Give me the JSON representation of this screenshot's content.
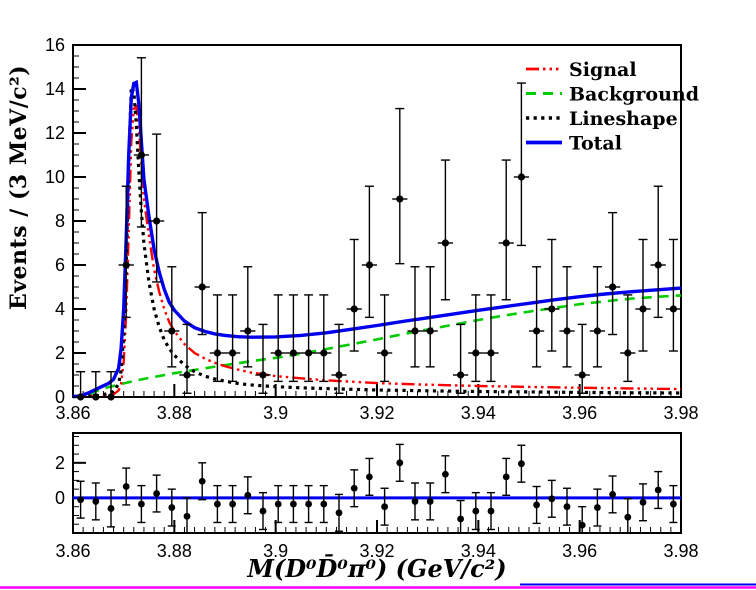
{
  "chart_data": [
    {
      "id": "main-panel",
      "type": "scatter",
      "ylabel": "Events / (3 MeV/c²)",
      "xlim": [
        3.86,
        3.98
      ],
      "ylim": [
        0,
        16
      ],
      "grid": false,
      "xticks": {
        "values": [
          3.86,
          3.88,
          3.9,
          3.92,
          3.94,
          3.96,
          3.98
        ],
        "labels": [
          "3.86",
          "3.88",
          "3.9",
          "3.92",
          "3.94",
          "3.96",
          "3.98"
        ],
        "minor_step": 0.002
      },
      "yticks": {
        "values": [
          0,
          2,
          4,
          6,
          8,
          10,
          12,
          14,
          16
        ],
        "labels": [
          "0",
          "2",
          "4",
          "6",
          "8",
          "10",
          "12",
          "14",
          "16"
        ],
        "minor_step": 0.5
      },
      "bin_width_gev": 0.003,
      "data_points": {
        "xerr": 0.0015,
        "x": [
          3.8615,
          3.8645,
          3.8675,
          3.8705,
          3.8735,
          3.8765,
          3.8795,
          3.8825,
          3.8855,
          3.8885,
          3.8915,
          3.8945,
          3.8975,
          3.9005,
          3.9035,
          3.9065,
          3.9095,
          3.9125,
          3.9155,
          3.9185,
          3.9215,
          3.9245,
          3.9275,
          3.9305,
          3.9335,
          3.9365,
          3.9395,
          3.9425,
          3.9455,
          3.9485,
          3.9515,
          3.9545,
          3.9575,
          3.9605,
          3.9635,
          3.9665,
          3.9695,
          3.9725,
          3.9755,
          3.9785
        ],
        "y": [
          0,
          0,
          0,
          6,
          11,
          8,
          3,
          1,
          5,
          2,
          2,
          3,
          1,
          2,
          2,
          2,
          2,
          1,
          4,
          6,
          2,
          9,
          3,
          3,
          7,
          1,
          2,
          2,
          7,
          10,
          3,
          4,
          3,
          1,
          3,
          5,
          2,
          4,
          6,
          4
        ],
        "err_up": [
          1.15,
          1.15,
          1.15,
          3.58,
          4.42,
          3.95,
          2.92,
          2.3,
          3.38,
          2.64,
          2.64,
          2.92,
          2.3,
          2.64,
          2.64,
          2.64,
          2.64,
          2.3,
          3.16,
          3.58,
          2.64,
          4.11,
          2.92,
          2.92,
          3.77,
          2.3,
          2.64,
          2.64,
          3.77,
          4.27,
          2.92,
          3.16,
          2.92,
          2.3,
          2.92,
          3.38,
          2.64,
          3.16,
          3.58,
          3.16
        ],
        "err_low": [
          0,
          0,
          0,
          2.38,
          3.27,
          2.77,
          1.63,
          0.83,
          2.16,
          1.29,
          1.29,
          1.63,
          0.83,
          1.29,
          1.29,
          1.29,
          1.29,
          0.83,
          1.91,
          2.38,
          1.29,
          2.94,
          1.63,
          1.63,
          2.58,
          0.83,
          1.29,
          1.29,
          2.58,
          3.11,
          1.63,
          1.91,
          1.63,
          0.83,
          1.63,
          2.16,
          1.29,
          1.91,
          2.38,
          1.91
        ]
      },
      "curves": [
        {
          "name": "Signal",
          "color": "#ff0000",
          "dash": "13 4 2.5 4 2.5 4 2.5 4",
          "width": 2.4,
          "points": [
            [
              3.86,
              0.02
            ],
            [
              3.864,
              0.04
            ],
            [
              3.866,
              0.07
            ],
            [
              3.868,
              0.12
            ],
            [
              3.869,
              0.3
            ],
            [
              3.8695,
              0.6
            ],
            [
              3.87,
              1.6
            ],
            [
              3.8705,
              3.8
            ],
            [
              3.871,
              7.5
            ],
            [
              3.8715,
              11.6
            ],
            [
              3.872,
              13.1
            ],
            [
              3.8725,
              13.2
            ],
            [
              3.873,
              12.2
            ],
            [
              3.8735,
              10.6
            ],
            [
              3.874,
              9.0
            ],
            [
              3.875,
              7.3
            ],
            [
              3.876,
              5.8
            ],
            [
              3.877,
              4.8
            ],
            [
              3.878,
              4.0
            ],
            [
              3.879,
              3.4
            ],
            [
              3.88,
              3.0
            ],
            [
              3.882,
              2.4
            ],
            [
              3.884,
              2.0
            ],
            [
              3.886,
              1.75
            ],
            [
              3.888,
              1.55
            ],
            [
              3.89,
              1.4
            ],
            [
              3.8925,
              1.25
            ],
            [
              3.895,
              1.12
            ],
            [
              3.9,
              0.95
            ],
            [
              3.905,
              0.85
            ],
            [
              3.91,
              0.76
            ],
            [
              3.92,
              0.63
            ],
            [
              3.93,
              0.56
            ],
            [
              3.94,
              0.5
            ],
            [
              3.95,
              0.46
            ],
            [
              3.96,
              0.42
            ],
            [
              3.97,
              0.39
            ],
            [
              3.98,
              0.36
            ]
          ]
        },
        {
          "name": "Background",
          "color": "#00cc00",
          "dash": "10 7",
          "width": 2.6,
          "points": [
            [
              3.86,
              0.0
            ],
            [
              3.8615,
              0.02
            ],
            [
              3.863,
              0.12
            ],
            [
              3.865,
              0.3
            ],
            [
              3.867,
              0.45
            ],
            [
              3.87,
              0.62
            ],
            [
              3.8725,
              0.75
            ],
            [
              3.875,
              0.87
            ],
            [
              3.88,
              1.08
            ],
            [
              3.885,
              1.27
            ],
            [
              3.89,
              1.45
            ],
            [
              3.895,
              1.62
            ],
            [
              3.9,
              1.78
            ],
            [
              3.905,
              1.97
            ],
            [
              3.91,
              2.18
            ],
            [
              3.915,
              2.4
            ],
            [
              3.92,
              2.62
            ],
            [
              3.925,
              2.85
            ],
            [
              3.93,
              3.07
            ],
            [
              3.935,
              3.28
            ],
            [
              3.94,
              3.5
            ],
            [
              3.945,
              3.7
            ],
            [
              3.95,
              3.88
            ],
            [
              3.955,
              4.05
            ],
            [
              3.96,
              4.22
            ],
            [
              3.965,
              4.35
            ],
            [
              3.97,
              4.47
            ],
            [
              3.975,
              4.55
            ],
            [
              3.98,
              4.62
            ]
          ]
        },
        {
          "name": "Lineshape",
          "color": "#000000",
          "dash": "3.2 4.4",
          "width": 3.2,
          "points": [
            [
              3.86,
              0.02
            ],
            [
              3.864,
              0.05
            ],
            [
              3.866,
              0.1
            ],
            [
              3.868,
              0.25
            ],
            [
              3.869,
              0.6
            ],
            [
              3.8695,
              1.2
            ],
            [
              3.87,
              2.8
            ],
            [
              3.8705,
              6.0
            ],
            [
              3.871,
              10.5
            ],
            [
              3.8715,
              14.1
            ],
            [
              3.872,
              13.9
            ],
            [
              3.8725,
              12.4
            ],
            [
              3.873,
              10.2
            ],
            [
              3.8735,
              8.4
            ],
            [
              3.874,
              7.0
            ],
            [
              3.875,
              5.2
            ],
            [
              3.876,
              4.0
            ],
            [
              3.877,
              3.2
            ],
            [
              3.878,
              2.6
            ],
            [
              3.879,
              2.2
            ],
            [
              3.88,
              1.9
            ],
            [
              3.882,
              1.45
            ],
            [
              3.884,
              1.15
            ],
            [
              3.886,
              0.95
            ],
            [
              3.888,
              0.82
            ],
            [
              3.89,
              0.72
            ],
            [
              3.8925,
              0.62
            ],
            [
              3.895,
              0.55
            ],
            [
              3.9,
              0.47
            ],
            [
              3.905,
              0.42
            ],
            [
              3.91,
              0.38
            ],
            [
              3.92,
              0.32
            ],
            [
              3.93,
              0.28
            ],
            [
              3.94,
              0.25
            ],
            [
              3.95,
              0.23
            ],
            [
              3.96,
              0.21
            ],
            [
              3.97,
              0.19
            ],
            [
              3.98,
              0.18
            ]
          ]
        },
        {
          "name": "Total",
          "color": "#0000ee",
          "dash": null,
          "width": 3.4,
          "points": [
            [
              3.86,
              0.02
            ],
            [
              3.8615,
              0.05
            ],
            [
              3.863,
              0.18
            ],
            [
              3.865,
              0.4
            ],
            [
              3.867,
              0.62
            ],
            [
              3.868,
              0.8
            ],
            [
              3.869,
              1.3
            ],
            [
              3.8695,
              2.2
            ],
            [
              3.87,
              4.0
            ],
            [
              3.8705,
              7.2
            ],
            [
              3.871,
              11.0
            ],
            [
              3.8715,
              13.6
            ],
            [
              3.872,
              14.25
            ],
            [
              3.8725,
              14.3
            ],
            [
              3.873,
              13.3
            ],
            [
              3.8735,
              11.6
            ],
            [
              3.874,
              9.9
            ],
            [
              3.875,
              8.2
            ],
            [
              3.876,
              6.7
            ],
            [
              3.877,
              5.7
            ],
            [
              3.878,
              4.9
            ],
            [
              3.879,
              4.3
            ],
            [
              3.88,
              3.95
            ],
            [
              3.882,
              3.45
            ],
            [
              3.884,
              3.15
            ],
            [
              3.886,
              2.98
            ],
            [
              3.888,
              2.87
            ],
            [
              3.89,
              2.8
            ],
            [
              3.8925,
              2.74
            ],
            [
              3.895,
              2.72
            ],
            [
              3.9,
              2.73
            ],
            [
              3.905,
              2.8
            ],
            [
              3.91,
              2.92
            ],
            [
              3.915,
              3.08
            ],
            [
              3.92,
              3.25
            ],
            [
              3.925,
              3.43
            ],
            [
              3.93,
              3.6
            ],
            [
              3.935,
              3.77
            ],
            [
              3.94,
              3.94
            ],
            [
              3.945,
              4.1
            ],
            [
              3.95,
              4.26
            ],
            [
              3.955,
              4.42
            ],
            [
              3.96,
              4.56
            ],
            [
              3.965,
              4.68
            ],
            [
              3.97,
              4.78
            ],
            [
              3.975,
              4.87
            ],
            [
              3.98,
              4.95
            ]
          ]
        }
      ],
      "legend": {
        "position": "top-right",
        "items": [
          "Signal",
          "Background",
          "Lineshape",
          "Total"
        ]
      }
    },
    {
      "id": "pull-panel",
      "type": "scatter",
      "xlabel": "M(D⁰D̄⁰π⁰) (GeV/c²)",
      "xlim": [
        3.86,
        3.98
      ],
      "ylim": [
        -2,
        3.7
      ],
      "zero_line_color": "#0000ee",
      "xticks": {
        "values": [
          3.86,
          3.88,
          3.9,
          3.92,
          3.94,
          3.96,
          3.98
        ],
        "labels": [
          "3.86",
          "3.88",
          "3.9",
          "3.92",
          "3.94",
          "3.96",
          "3.98"
        ],
        "minor_step": 0.002
      },
      "yticks": {
        "values": [
          0,
          2
        ],
        "labels": [
          "0",
          "2"
        ],
        "minor_step": 0.5
      },
      "pulls": {
        "err": 1.05,
        "x": [
          3.8615,
          3.8645,
          3.8675,
          3.8705,
          3.8735,
          3.8765,
          3.8795,
          3.8825,
          3.8855,
          3.8885,
          3.8915,
          3.8945,
          3.8975,
          3.9005,
          3.9035,
          3.9065,
          3.9095,
          3.9125,
          3.9155,
          3.9185,
          3.9215,
          3.9245,
          3.9275,
          3.9305,
          3.9335,
          3.9365,
          3.9395,
          3.9425,
          3.9455,
          3.9485,
          3.9515,
          3.9545,
          3.9575,
          3.9605,
          3.9635,
          3.9665,
          3.9695,
          3.9725,
          3.9755,
          3.9785
        ],
        "y": [
          -0.1,
          -0.2,
          -0.6,
          0.65,
          -0.35,
          0.25,
          -0.55,
          -1.05,
          0.95,
          -0.35,
          -0.35,
          0.15,
          -0.75,
          -0.35,
          -0.35,
          -0.35,
          -0.35,
          -0.85,
          0.55,
          1.2,
          -0.5,
          2.0,
          -0.2,
          -0.2,
          1.35,
          -1.2,
          -0.75,
          -0.75,
          1.2,
          1.95,
          -0.4,
          -0.05,
          -0.5,
          -1.55,
          -0.55,
          0.2,
          -1.1,
          -0.25,
          0.45,
          -0.35
        ]
      }
    }
  ],
  "decorations": {
    "bottom_line_magenta": "#ff00ff",
    "bottom_line_blue": "#0000ee",
    "marker_color": "#000000",
    "frame_color": "#000000"
  }
}
